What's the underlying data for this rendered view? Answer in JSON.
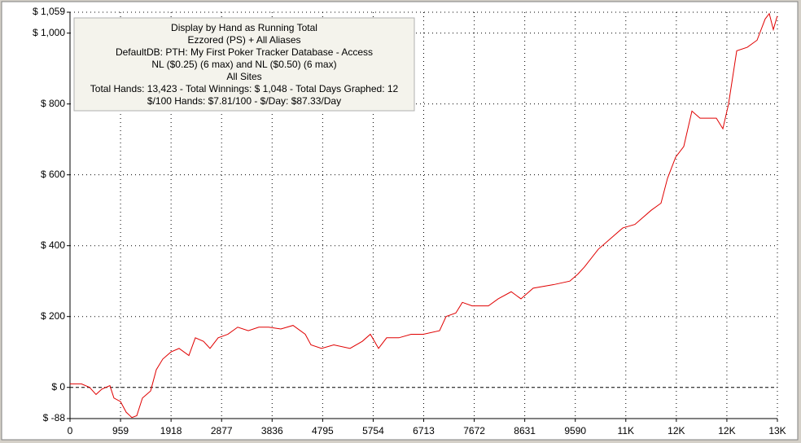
{
  "chart_data": {
    "type": "line",
    "annotation_lines": [
      "Display by Hand as Running Total",
      "Ezzored (PS) + All Aliases",
      "DefaultDB: PTH: My First Poker Tracker Database - Access",
      "NL ($0.25) (6 max) and NL ($0.50) (6 max)",
      "All Sites",
      "Total Hands: 13,423 - Total Winnings: $ 1,048 - Total Days Graphed: 12",
      "$/100 Hands: $7.81/100 - $/Day: $87.33/Day"
    ],
    "x": [
      0,
      216,
      371,
      494,
      603,
      757,
      834,
      958,
      1066,
      1174,
      1267,
      1375,
      1530,
      1638,
      1761,
      1916,
      2070,
      2256,
      2379,
      2534,
      2657,
      2812,
      2997,
      3183,
      3384,
      3584,
      3770,
      4002,
      4233,
      4465,
      4573,
      4774,
      5006,
      5315,
      5547,
      5701,
      5856,
      6010,
      6242,
      6474,
      6705,
      7014,
      7138,
      7323,
      7447,
      7632,
      7941,
      8127,
      8374,
      8559,
      8791,
      9177,
      9486,
      9641,
      9764,
      10027,
      10259,
      10491,
      10722,
      11031,
      11217,
      11340,
      11495,
      11649,
      11804,
      11958,
      12267,
      12391,
      12499,
      12654,
      12854,
      13040,
      13194,
      13272,
      13349,
      13423
    ],
    "series": [
      {
        "color": "#e00000",
        "values": [
          10,
          10,
          0,
          -20,
          -5,
          5,
          -30,
          -40,
          -70,
          -85,
          -80,
          -30,
          -10,
          50,
          80,
          100,
          110,
          90,
          140,
          130,
          110,
          140,
          150,
          170,
          160,
          170,
          170,
          165,
          175,
          150,
          120,
          110,
          120,
          110,
          130,
          150,
          110,
          140,
          140,
          150,
          150,
          160,
          200,
          210,
          240,
          230,
          230,
          250,
          270,
          250,
          280,
          290,
          300,
          320,
          340,
          390,
          420,
          450,
          460,
          500,
          520,
          590,
          650,
          680,
          780,
          760,
          760,
          730,
          800,
          950,
          960,
          980,
          1040,
          1055,
          1010,
          1048
        ]
      }
    ],
    "xlim": [
      0,
      13426
    ],
    "xticks": [
      0,
      959,
      1918,
      2877,
      3836,
      4795,
      5754,
      6713,
      7672,
      8631,
      9590,
      {
        "value": 10549,
        "label": "11K"
      },
      {
        "value": 11508,
        "label": "12K"
      },
      {
        "value": 12467,
        "label": "12K"
      },
      {
        "value": 13426,
        "label": "13K"
      }
    ],
    "ylim": [
      -88,
      1059
    ],
    "yticks": [
      {
        "value": -88,
        "label": "$ -88"
      },
      {
        "value": 0,
        "label": "$ 0"
      },
      {
        "value": 200,
        "label": "$ 200"
      },
      {
        "value": 400,
        "label": "$ 400"
      },
      {
        "value": 600,
        "label": "$ 600"
      },
      {
        "value": 800,
        "label": "$ 800"
      },
      {
        "value": 1000,
        "label": "$ 1,000"
      },
      {
        "value": 1059,
        "label": "$ 1,059"
      }
    ],
    "grid": true
  }
}
